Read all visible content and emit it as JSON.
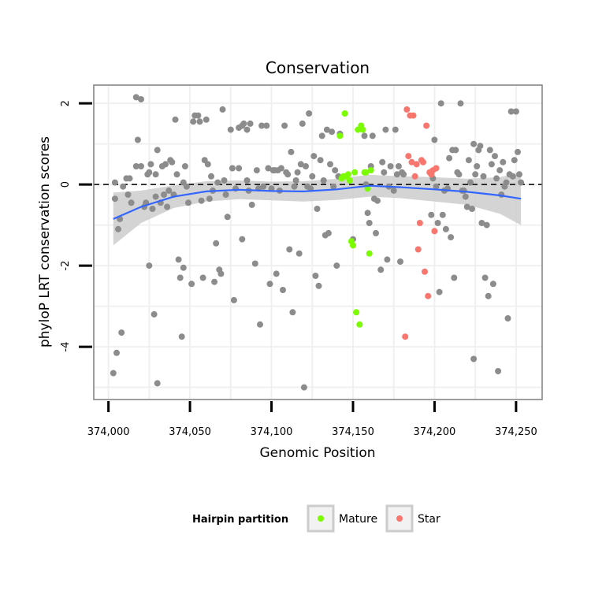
{
  "chart_data": {
    "type": "scatter",
    "title": "Conservation",
    "xlabel": "Genomic Position",
    "ylabel": "phyloP LRT conservation scores",
    "xlim": [
      373991,
      374266
    ],
    "ylim": [
      -5.3,
      2.45
    ],
    "x_ticks": [
      374000,
      374050,
      374100,
      374150,
      374200,
      374250
    ],
    "x_tick_labels": [
      "374,000",
      "374,050",
      "374,100",
      "374,150",
      "374,200",
      "374,250"
    ],
    "y_ticks": [
      2,
      0,
      -2,
      -4
    ],
    "y_tick_labels": [
      "2",
      "0",
      "-2",
      "-4"
    ],
    "reference_line": {
      "y": 0,
      "style": "dashed"
    },
    "grid": true,
    "legend": {
      "title": "Hairpin partition",
      "position": "bottom",
      "entries": [
        {
          "label": "Mature",
          "color": "#7cfc00"
        },
        {
          "label": "Star",
          "color": "#f8766d"
        }
      ]
    },
    "colors": {
      "other": "#8c8c8c",
      "smooth_line": "#3366ff",
      "band": "#cccccc"
    },
    "series": [
      {
        "name": "Other",
        "points": [
          [
            374003,
            -4.65
          ],
          [
            374004,
            0.05
          ],
          [
            374004,
            -0.35
          ],
          [
            374005,
            -4.15
          ],
          [
            374006,
            -1.1
          ],
          [
            374007,
            -0.85
          ],
          [
            374008,
            -3.65
          ],
          [
            374009,
            -0.05
          ],
          [
            374011,
            0.15
          ],
          [
            374012,
            -0.25
          ],
          [
            374013,
            0.15
          ],
          [
            374014,
            -0.45
          ],
          [
            374017,
            0.45
          ],
          [
            374017,
            2.15
          ],
          [
            374018,
            1.1
          ],
          [
            374020,
            2.1
          ],
          [
            374020,
            0.45
          ],
          [
            374022,
            -0.55
          ],
          [
            374023,
            -0.45
          ],
          [
            374024,
            0.25
          ],
          [
            374025,
            0.3
          ],
          [
            374025,
            -2.0
          ],
          [
            374026,
            0.5
          ],
          [
            374027,
            -0.6
          ],
          [
            374028,
            -3.2
          ],
          [
            374029,
            0.25
          ],
          [
            374029,
            -0.3
          ],
          [
            374030,
            0.85
          ],
          [
            374030,
            -4.9
          ],
          [
            374032,
            -0.45
          ],
          [
            374033,
            0.45
          ],
          [
            374034,
            -0.25
          ],
          [
            374035,
            0.5
          ],
          [
            374036,
            -0.55
          ],
          [
            374037,
            -0.15
          ],
          [
            374038,
            0.6
          ],
          [
            374039,
            0.55
          ],
          [
            374040,
            -0.25
          ],
          [
            374041,
            1.6
          ],
          [
            374042,
            0.25
          ],
          [
            374043,
            -1.85
          ],
          [
            374044,
            -2.3
          ],
          [
            374045,
            -3.75
          ],
          [
            374046,
            0.05
          ],
          [
            374046,
            -2.05
          ],
          [
            374047,
            0.45
          ],
          [
            374048,
            -0.05
          ],
          [
            374049,
            -0.45
          ],
          [
            374051,
            -2.45
          ],
          [
            374052,
            1.55
          ],
          [
            374053,
            1.7
          ],
          [
            374055,
            1.7
          ],
          [
            374056,
            1.55
          ],
          [
            374057,
            -0.4
          ],
          [
            374058,
            -2.3
          ],
          [
            374059,
            0.6
          ],
          [
            374060,
            1.6
          ],
          [
            374061,
            0.5
          ],
          [
            374062,
            -0.35
          ],
          [
            374063,
            0.2
          ],
          [
            374064,
            -0.15
          ],
          [
            374065,
            -2.4
          ],
          [
            374066,
            -1.45
          ],
          [
            374067,
            0.05
          ],
          [
            374068,
            -2.1
          ],
          [
            374069,
            -2.2
          ],
          [
            374070,
            1.85
          ],
          [
            374071,
            0.1
          ],
          [
            374072,
            -0.25
          ],
          [
            374073,
            -0.8
          ],
          [
            374075,
            1.35
          ],
          [
            374076,
            0.4
          ],
          [
            374077,
            -2.85
          ],
          [
            374078,
            -0.1
          ],
          [
            374080,
            0.4
          ],
          [
            374080,
            1.4
          ],
          [
            374082,
            1.45
          ],
          [
            374082,
            -1.35
          ],
          [
            374083,
            1.5
          ],
          [
            374085,
            0.1
          ],
          [
            374085,
            1.35
          ],
          [
            374086,
            -0.15
          ],
          [
            374087,
            1.5
          ],
          [
            374088,
            -0.5
          ],
          [
            374090,
            -1.95
          ],
          [
            374091,
            0.35
          ],
          [
            374092,
            -0.1
          ],
          [
            374093,
            -3.45
          ],
          [
            374094,
            1.45
          ],
          [
            374095,
            -0.05
          ],
          [
            374097,
            1.45
          ],
          [
            374098,
            0.4
          ],
          [
            374099,
            -2.45
          ],
          [
            374100,
            -0.1
          ],
          [
            374101,
            0.35
          ],
          [
            374102,
            0.35
          ],
          [
            374103,
            -2.2
          ],
          [
            374104,
            0.35
          ],
          [
            374105,
            -0.15
          ],
          [
            374106,
            0.4
          ],
          [
            374107,
            -2.6
          ],
          [
            374108,
            1.45
          ],
          [
            374109,
            0.3
          ],
          [
            374110,
            0.25
          ],
          [
            374111,
            -1.6
          ],
          [
            374112,
            0.8
          ],
          [
            374113,
            -3.15
          ],
          [
            374114,
            -0.05
          ],
          [
            374115,
            0.1
          ],
          [
            374116,
            0.3
          ],
          [
            374117,
            -1.7
          ],
          [
            374118,
            0.5
          ],
          [
            374119,
            1.5
          ],
          [
            374120,
            -5.0
          ],
          [
            374121,
            0.45
          ],
          [
            374122,
            -0.05
          ],
          [
            374123,
            1.75
          ],
          [
            374124,
            -0.1
          ],
          [
            374125,
            0.2
          ],
          [
            374126,
            0.7
          ],
          [
            374127,
            -2.25
          ],
          [
            374128,
            -0.6
          ],
          [
            374129,
            -2.5
          ],
          [
            374130,
            0.6
          ],
          [
            374131,
            1.2
          ],
          [
            374132,
            0.1
          ],
          [
            374133,
            -1.25
          ],
          [
            374134,
            1.35
          ],
          [
            374135,
            -1.2
          ],
          [
            374136,
            0.5
          ],
          [
            374137,
            1.3
          ],
          [
            374138,
            -0.05
          ],
          [
            374139,
            0.35
          ],
          [
            374140,
            -2.0
          ],
          [
            374141,
            0.2
          ],
          [
            374142,
            1.25
          ],
          [
            374150,
            -1.35
          ],
          [
            374157,
            1.2
          ],
          [
            374158,
            0.0
          ],
          [
            374159,
            -0.7
          ],
          [
            374160,
            -0.95
          ],
          [
            374161,
            0.45
          ],
          [
            374162,
            1.2
          ],
          [
            374163,
            -0.35
          ],
          [
            374164,
            -1.2
          ],
          [
            374165,
            -0.4
          ],
          [
            374167,
            -2.1
          ],
          [
            374168,
            0.55
          ],
          [
            374169,
            0.3
          ],
          [
            374170,
            1.35
          ],
          [
            374171,
            -1.85
          ],
          [
            374172,
            -0.05
          ],
          [
            374173,
            0.45
          ],
          [
            374175,
            -0.15
          ],
          [
            374176,
            1.35
          ],
          [
            374177,
            0.25
          ],
          [
            374178,
            0.45
          ],
          [
            374179,
            -1.9
          ],
          [
            374180,
            0.3
          ],
          [
            374181,
            0.25
          ],
          [
            374198,
            -0.75
          ],
          [
            374199,
            0.15
          ],
          [
            374200,
            1.1
          ],
          [
            374201,
            -0.05
          ],
          [
            374202,
            -0.95
          ],
          [
            374203,
            -2.65
          ],
          [
            374204,
            2.0
          ],
          [
            374205,
            -0.75
          ],
          [
            374206,
            -0.15
          ],
          [
            374207,
            -1.1
          ],
          [
            374208,
            -0.1
          ],
          [
            374209,
            0.65
          ],
          [
            374210,
            -1.3
          ],
          [
            374211,
            0.85
          ],
          [
            374212,
            -2.3
          ],
          [
            374213,
            0.85
          ],
          [
            374214,
            0.3
          ],
          [
            374215,
            0.25
          ],
          [
            374216,
            2.0
          ],
          [
            374217,
            -0.15
          ],
          [
            374218,
            -0.15
          ],
          [
            374219,
            -0.3
          ],
          [
            374220,
            -0.55
          ],
          [
            374221,
            0.6
          ],
          [
            374222,
            0.05
          ],
          [
            374223,
            -0.6
          ],
          [
            374224,
            1.0
          ],
          [
            374224,
            -4.3
          ],
          [
            374225,
            0.25
          ],
          [
            374226,
            0.45
          ],
          [
            374227,
            0.85
          ],
          [
            374228,
            0.95
          ],
          [
            374229,
            -0.95
          ],
          [
            374230,
            0.2
          ],
          [
            374231,
            -2.3
          ],
          [
            374232,
            -1.0
          ],
          [
            374233,
            -2.75
          ],
          [
            374234,
            0.85
          ],
          [
            374235,
            0.5
          ],
          [
            374236,
            -2.45
          ],
          [
            374237,
            0.7
          ],
          [
            374238,
            0.15
          ],
          [
            374239,
            -4.6
          ],
          [
            374240,
            0.35
          ],
          [
            374241,
            -0.25
          ],
          [
            374242,
            0.55
          ],
          [
            374243,
            -0.05
          ],
          [
            374244,
            0.05
          ],
          [
            374245,
            -3.3
          ],
          [
            374246,
            0.25
          ],
          [
            374247,
            1.8
          ],
          [
            374248,
            0.2
          ],
          [
            374249,
            0.6
          ],
          [
            374250,
            1.8
          ],
          [
            374251,
            0.8
          ],
          [
            374252,
            0.25
          ],
          [
            374253,
            0.05
          ]
        ]
      },
      {
        "name": "Mature",
        "points": [
          [
            374142,
            1.2
          ],
          [
            374143,
            0.15
          ],
          [
            374144,
            0.2
          ],
          [
            374145,
            1.75
          ],
          [
            374146,
            0.2
          ],
          [
            374147,
            0.25
          ],
          [
            374148,
            0.1
          ],
          [
            374149,
            -1.4
          ],
          [
            374150,
            -1.5
          ],
          [
            374151,
            0.3
          ],
          [
            374152,
            -3.15
          ],
          [
            374153,
            1.35
          ],
          [
            374154,
            -3.45
          ],
          [
            374155,
            1.45
          ],
          [
            374156,
            1.35
          ],
          [
            374157,
            0.3
          ],
          [
            374158,
            0.3
          ],
          [
            374159,
            -0.1
          ],
          [
            374160,
            -1.7
          ],
          [
            374161,
            0.35
          ]
        ]
      },
      {
        "name": "Star",
        "points": [
          [
            374182,
            -3.75
          ],
          [
            374183,
            1.85
          ],
          [
            374184,
            0.7
          ],
          [
            374185,
            1.7
          ],
          [
            374186,
            0.55
          ],
          [
            374187,
            1.7
          ],
          [
            374188,
            0.2
          ],
          [
            374189,
            0.5
          ],
          [
            374190,
            -1.6
          ],
          [
            374191,
            -0.95
          ],
          [
            374192,
            0.6
          ],
          [
            374193,
            0.55
          ],
          [
            374194,
            -2.15
          ],
          [
            374195,
            1.45
          ],
          [
            374196,
            -2.75
          ],
          [
            374197,
            0.3
          ],
          [
            374198,
            0.25
          ],
          [
            374199,
            0.35
          ],
          [
            374200,
            -1.15
          ],
          [
            374201,
            0.4
          ]
        ]
      }
    ],
    "smooth": {
      "x": [
        374003,
        374020,
        374040,
        374060,
        374080,
        374100,
        374120,
        374140,
        374160,
        374180,
        374200,
        374220,
        374240,
        374253
      ],
      "y": [
        -0.85,
        -0.55,
        -0.3,
        -0.17,
        -0.13,
        -0.16,
        -0.17,
        -0.12,
        -0.03,
        -0.07,
        -0.12,
        -0.18,
        -0.27,
        -0.35
      ],
      "lower": [
        -1.5,
        -0.95,
        -0.58,
        -0.42,
        -0.36,
        -0.39,
        -0.42,
        -0.38,
        -0.3,
        -0.34,
        -0.42,
        -0.5,
        -0.72,
        -1.0
      ],
      "upper": [
        -0.2,
        -0.15,
        -0.02,
        0.08,
        0.1,
        0.07,
        0.08,
        0.14,
        0.24,
        0.2,
        0.18,
        0.14,
        0.18,
        0.3
      ]
    }
  }
}
